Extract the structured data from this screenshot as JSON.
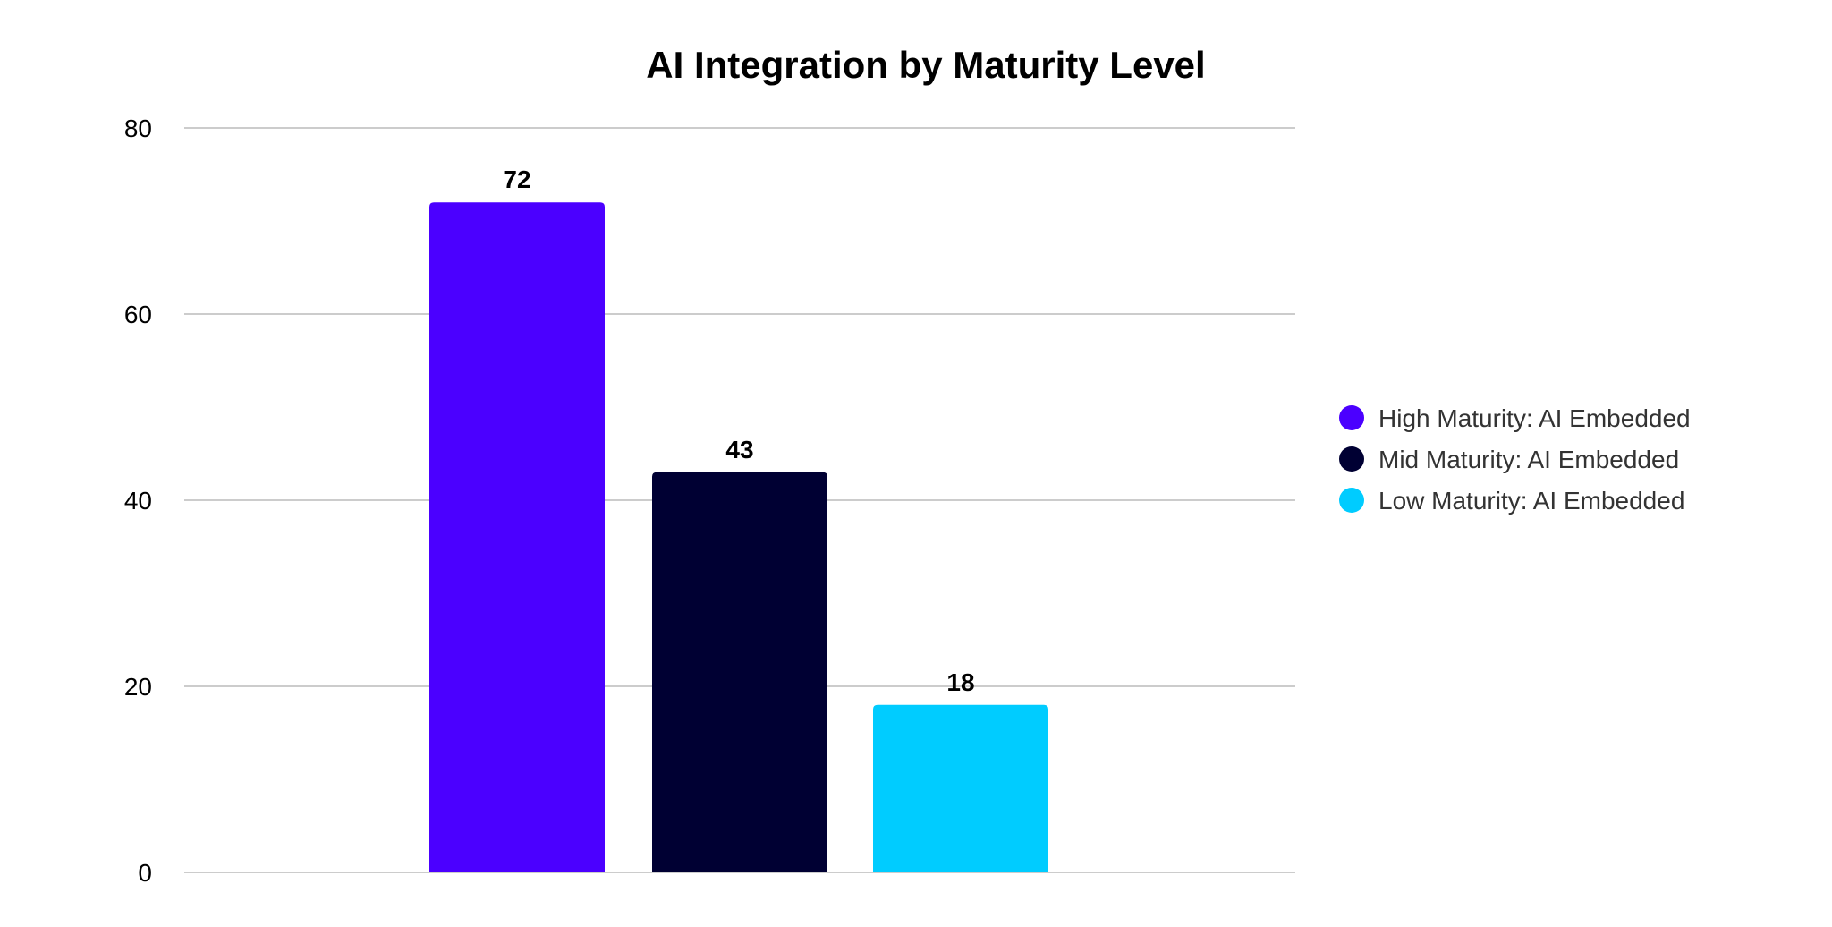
{
  "chart_data": {
    "type": "bar",
    "title": "AI Integration by Maturity Level",
    "xlabel": "",
    "ylabel": "",
    "ylim": [
      0,
      80
    ],
    "yticks": [
      0,
      20,
      40,
      60,
      80
    ],
    "grid": true,
    "legend_position": "right",
    "series": [
      {
        "name": "High Maturity: AI Embedded",
        "values": [
          72
        ],
        "color": "#4B00FF"
      },
      {
        "name": "Mid Maturity: AI Embedded",
        "values": [
          43
        ],
        "color": "#000033"
      },
      {
        "name": "Low Maturity: AI Embedded",
        "values": [
          18
        ],
        "color": "#00CCFF"
      }
    ],
    "data_labels": true
  }
}
